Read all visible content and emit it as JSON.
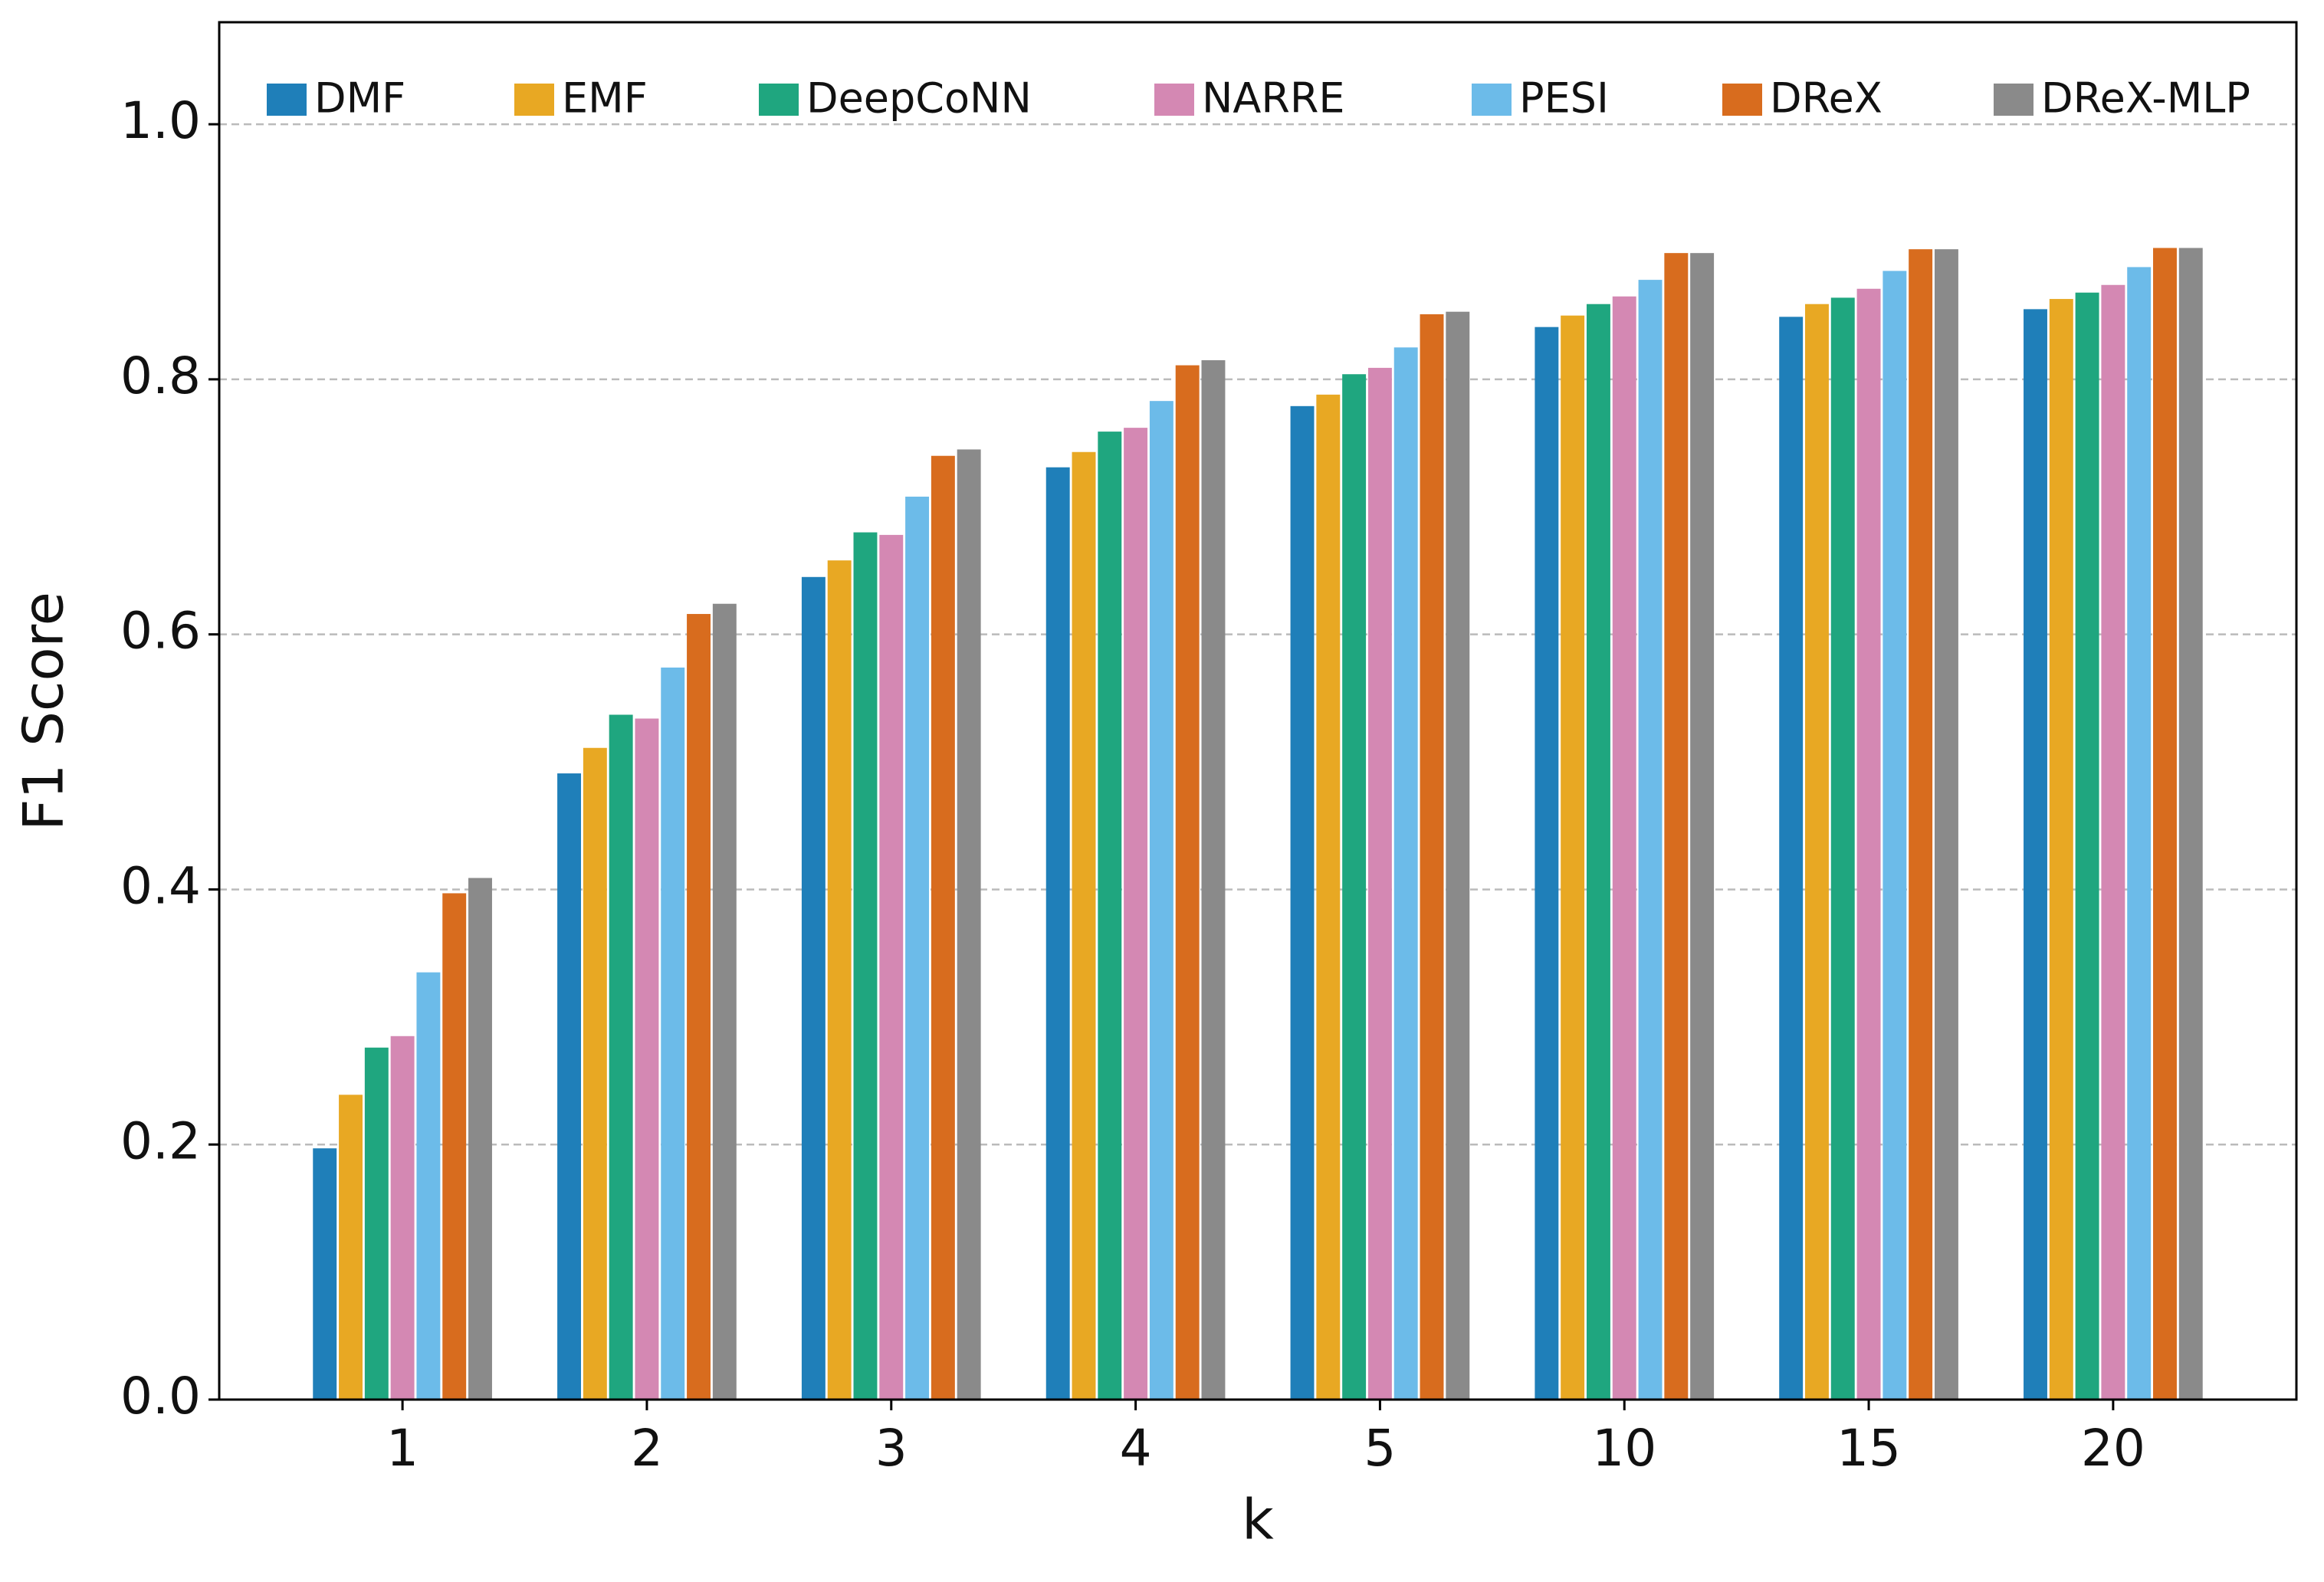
{
  "chart_data": {
    "type": "bar",
    "xlabel": "k",
    "ylabel": "F1 Score",
    "categories": [
      "1",
      "2",
      "3",
      "4",
      "5",
      "10",
      "15",
      "20"
    ],
    "series": [
      {
        "name": "DMF",
        "color": "#1f7fb9",
        "values": [
          0.197,
          0.491,
          0.645,
          0.731,
          0.779,
          0.841,
          0.849,
          0.855
        ]
      },
      {
        "name": "EMF",
        "color": "#e8a823",
        "values": [
          0.239,
          0.511,
          0.658,
          0.743,
          0.788,
          0.85,
          0.859,
          0.863
        ]
      },
      {
        "name": "DeepCoNN",
        "color": "#1fa67f",
        "values": [
          0.276,
          0.537,
          0.68,
          0.759,
          0.804,
          0.859,
          0.864,
          0.868
        ]
      },
      {
        "name": "NARRE",
        "color": "#d488b3",
        "values": [
          0.285,
          0.534,
          0.678,
          0.762,
          0.809,
          0.865,
          0.871,
          0.874
        ]
      },
      {
        "name": "PESI",
        "color": "#6cbbe9",
        "values": [
          0.335,
          0.574,
          0.708,
          0.783,
          0.825,
          0.878,
          0.885,
          0.888
        ]
      },
      {
        "name": "DReX",
        "color": "#d86c1e",
        "values": [
          0.397,
          0.616,
          0.74,
          0.811,
          0.851,
          0.899,
          0.902,
          0.903
        ]
      },
      {
        "name": "DReX-MLP",
        "color": "#8a8a8a",
        "values": [
          0.409,
          0.624,
          0.745,
          0.815,
          0.853,
          0.899,
          0.902,
          0.903
        ]
      }
    ],
    "ylim": [
      0,
      1.08
    ],
    "yticks": [
      {
        "value": 0,
        "label": "0.0"
      },
      0.2,
      0.4,
      0.6,
      0.8,
      {
        "value": 1,
        "label": "1.0"
      }
    ],
    "grid": true,
    "legend": "top"
  }
}
